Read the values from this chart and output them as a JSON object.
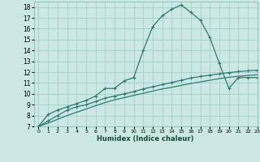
{
  "xlabel": "Humidex (Indice chaleur)",
  "bg_color": "#cce8e4",
  "line_color": "#2d7a6e",
  "grid_color": "#99ccc5",
  "xlim": [
    -0.5,
    23
  ],
  "ylim": [
    7,
    18.5
  ],
  "xticks": [
    0,
    1,
    2,
    3,
    4,
    5,
    6,
    7,
    8,
    9,
    10,
    11,
    12,
    13,
    14,
    15,
    16,
    17,
    18,
    19,
    20,
    21,
    22,
    23
  ],
  "yticks": [
    7,
    8,
    9,
    10,
    11,
    12,
    13,
    14,
    15,
    16,
    17,
    18
  ],
  "line1_x": [
    0,
    1,
    2,
    3,
    4,
    5,
    6,
    7,
    8,
    9,
    10,
    11,
    12,
    13,
    14,
    15,
    16,
    17,
    18,
    19,
    20,
    21,
    22,
    23
  ],
  "line1_y": [
    7.0,
    8.1,
    8.5,
    8.8,
    9.1,
    9.4,
    9.8,
    10.5,
    10.5,
    11.2,
    11.5,
    14.0,
    16.2,
    17.2,
    17.8,
    18.2,
    17.5,
    16.8,
    15.2,
    12.8,
    10.5,
    11.5,
    11.5,
    11.5
  ],
  "line2_x": [
    0,
    1,
    2,
    3,
    4,
    5,
    6,
    7,
    8,
    9,
    10,
    11,
    12,
    13,
    14,
    15,
    16,
    17,
    18,
    19,
    20,
    21,
    22,
    23
  ],
  "line2_y": [
    7.0,
    7.5,
    8.0,
    8.5,
    8.8,
    9.0,
    9.3,
    9.6,
    9.8,
    10.0,
    10.2,
    10.45,
    10.65,
    10.85,
    11.05,
    11.25,
    11.45,
    11.6,
    11.72,
    11.85,
    11.95,
    12.05,
    12.12,
    12.18
  ],
  "line3_x": [
    0,
    1,
    2,
    3,
    4,
    5,
    6,
    7,
    8,
    9,
    10,
    11,
    12,
    13,
    14,
    15,
    16,
    17,
    18,
    19,
    20,
    21,
    22,
    23
  ],
  "line3_y": [
    7.0,
    7.3,
    7.65,
    8.0,
    8.3,
    8.6,
    8.9,
    9.2,
    9.45,
    9.65,
    9.85,
    10.05,
    10.25,
    10.45,
    10.6,
    10.78,
    10.95,
    11.1,
    11.25,
    11.4,
    11.52,
    11.62,
    11.7,
    11.75
  ]
}
